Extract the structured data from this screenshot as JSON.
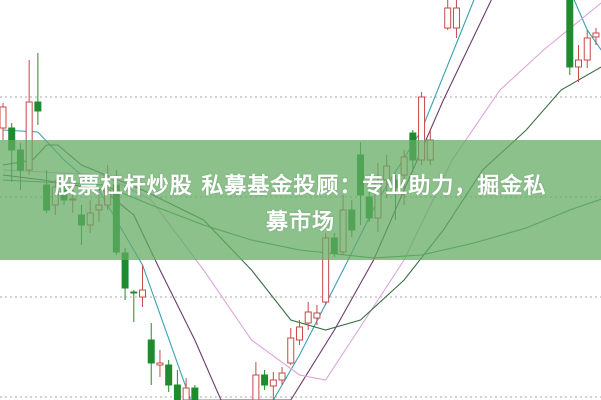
{
  "banner": {
    "title_line1": "股票杠杆炒股 私募基金投顾：专业助力，掘金私",
    "title_line2": "募市场"
  },
  "colors": {
    "up": "#c84848",
    "down": "#1e8c2e",
    "grid": "#aaaaaa",
    "banner": "#64ac64",
    "ma": [
      "#3a9fb3",
      "#6b3b6b",
      "#dca4dc",
      "#3c6e44",
      "#3f8f55"
    ]
  },
  "chart_data": {
    "type": "candlestick",
    "title": "",
    "xlabel": "",
    "ylabel": "",
    "ylim": [
      0,
      400
    ],
    "grid": "horizontal dotted",
    "gridlines": [
      3,
      103,
      203,
      303
    ],
    "candles_fields": [
      "index",
      "open",
      "close",
      "high",
      "low"
    ],
    "candles": [
      [
        0,
        272,
        293,
        297,
        260
      ],
      [
        1,
        272,
        250,
        277,
        218
      ],
      [
        2,
        250,
        230,
        257,
        210
      ],
      [
        3,
        230,
        298,
        340,
        225
      ],
      [
        4,
        298,
        289,
        347,
        275
      ],
      [
        5,
        215,
        190,
        230,
        187
      ],
      [
        6,
        195,
        213,
        220,
        185
      ],
      [
        7,
        210,
        200,
        215,
        195
      ],
      [
        8,
        200,
        201,
        210,
        187
      ],
      [
        9,
        185,
        175,
        195,
        155
      ],
      [
        10,
        175,
        187,
        200,
        167
      ],
      [
        11,
        190,
        195,
        205,
        178
      ],
      [
        12,
        195,
        210,
        235,
        190
      ],
      [
        13,
        215,
        148,
        230,
        145
      ],
      [
        14,
        147,
        112,
        152,
        100
      ],
      [
        15,
        108,
        107,
        110,
        78
      ],
      [
        16,
        103,
        110,
        135,
        93
      ],
      [
        17,
        60,
        37,
        77,
        15
      ],
      [
        18,
        35,
        37,
        50,
        23
      ],
      [
        19,
        35,
        15,
        40,
        8
      ],
      [
        20,
        15,
        0,
        30,
        0
      ],
      [
        21,
        0,
        12,
        22,
        0
      ],
      [
        22,
        12,
        0,
        15,
        0
      ],
      [
        29,
        0,
        25,
        38,
        0
      ],
      [
        30,
        25,
        15,
        30,
        10
      ],
      [
        31,
        14,
        20,
        28,
        0
      ],
      [
        32,
        20,
        27,
        33,
        15
      ],
      [
        33,
        37,
        62,
        72,
        35
      ],
      [
        34,
        60,
        73,
        80,
        55
      ],
      [
        35,
        77,
        88,
        98,
        70
      ],
      [
        36,
        82,
        87,
        95,
        75
      ],
      [
        37,
        98,
        162,
        167,
        95
      ],
      [
        38,
        162,
        147,
        167,
        143
      ],
      [
        39,
        148,
        190,
        205,
        145
      ],
      [
        40,
        190,
        170,
        200,
        163
      ],
      [
        41,
        245,
        205,
        258,
        175
      ],
      [
        42,
        203,
        182,
        208,
        178
      ],
      [
        43,
        182,
        218,
        237,
        168
      ],
      [
        44,
        220,
        234,
        245,
        202
      ],
      [
        45,
        220,
        212,
        225,
        180
      ],
      [
        46,
        225,
        243,
        250,
        195
      ],
      [
        47,
        267,
        240,
        270,
        228
      ],
      [
        48,
        240,
        303,
        308,
        235
      ],
      [
        49,
        240,
        260,
        270,
        235
      ],
      [
        51,
        372,
        392,
        400,
        370
      ],
      [
        52,
        372,
        392,
        400,
        362
      ],
      [
        65,
        400,
        333,
        400,
        325
      ],
      [
        66,
        333,
        340,
        355,
        318
      ],
      [
        67,
        340,
        362,
        370,
        332
      ],
      [
        68,
        363,
        367,
        372,
        355
      ]
    ],
    "moving_averages": [
      [
        [
          0,
          270
        ],
        [
          4,
          268
        ],
        [
          7,
          240
        ],
        [
          11,
          210
        ],
        [
          16,
          135
        ],
        [
          21.5,
          0
        ],
        [
          31,
          0
        ],
        [
          34,
          45
        ],
        [
          39,
          130
        ],
        [
          43,
          200
        ],
        [
          48,
          270
        ],
        [
          54,
          400
        ],
        null,
        [
          65.5,
          400
        ],
        [
          67,
          370
        ],
        [
          69,
          345
        ]
      ],
      [
        [
          0,
          225
        ],
        [
          4.6,
          220
        ],
        [
          11.5,
          210
        ],
        [
          15,
          185
        ],
        [
          18,
          130
        ],
        [
          22,
          60
        ],
        [
          25,
          0
        ],
        [
          33,
          0
        ],
        [
          38,
          70
        ],
        [
          42.5,
          140
        ],
        [
          46,
          210
        ],
        [
          50.5,
          300
        ],
        [
          56,
          400
        ]
      ],
      [
        [
          0,
          230
        ],
        [
          11.5,
          225
        ],
        [
          17,
          200
        ],
        [
          23,
          130
        ],
        [
          28.5,
          60
        ],
        [
          34,
          25
        ],
        [
          37,
          20
        ],
        [
          40,
          60
        ],
        [
          46,
          140
        ],
        [
          51.5,
          240
        ],
        [
          57,
          310
        ],
        [
          62,
          350
        ],
        [
          69,
          400
        ]
      ],
      [
        [
          0,
          235
        ],
        [
          3.4,
          240
        ],
        [
          5,
          255
        ],
        [
          6.3,
          255
        ],
        [
          9,
          235
        ],
        [
          16,
          210
        ],
        [
          23,
          180
        ],
        [
          28.5,
          130
        ],
        [
          33,
          80
        ],
        [
          37,
          70
        ],
        [
          41,
          80
        ],
        [
          46,
          120
        ],
        [
          50.5,
          170
        ],
        [
          55,
          230
        ],
        [
          60,
          270
        ],
        [
          64,
          310
        ],
        [
          69,
          335
        ]
      ],
      [
        [
          0,
          220
        ],
        [
          11.5,
          215
        ],
        [
          17,
          195
        ],
        [
          23,
          175
        ],
        [
          28.5,
          160
        ],
        [
          34,
          150
        ],
        [
          42.5,
          142
        ],
        [
          48,
          145
        ],
        [
          54,
          157
        ],
        [
          60,
          172
        ],
        [
          65,
          190
        ],
        [
          69,
          202
        ]
      ]
    ]
  }
}
